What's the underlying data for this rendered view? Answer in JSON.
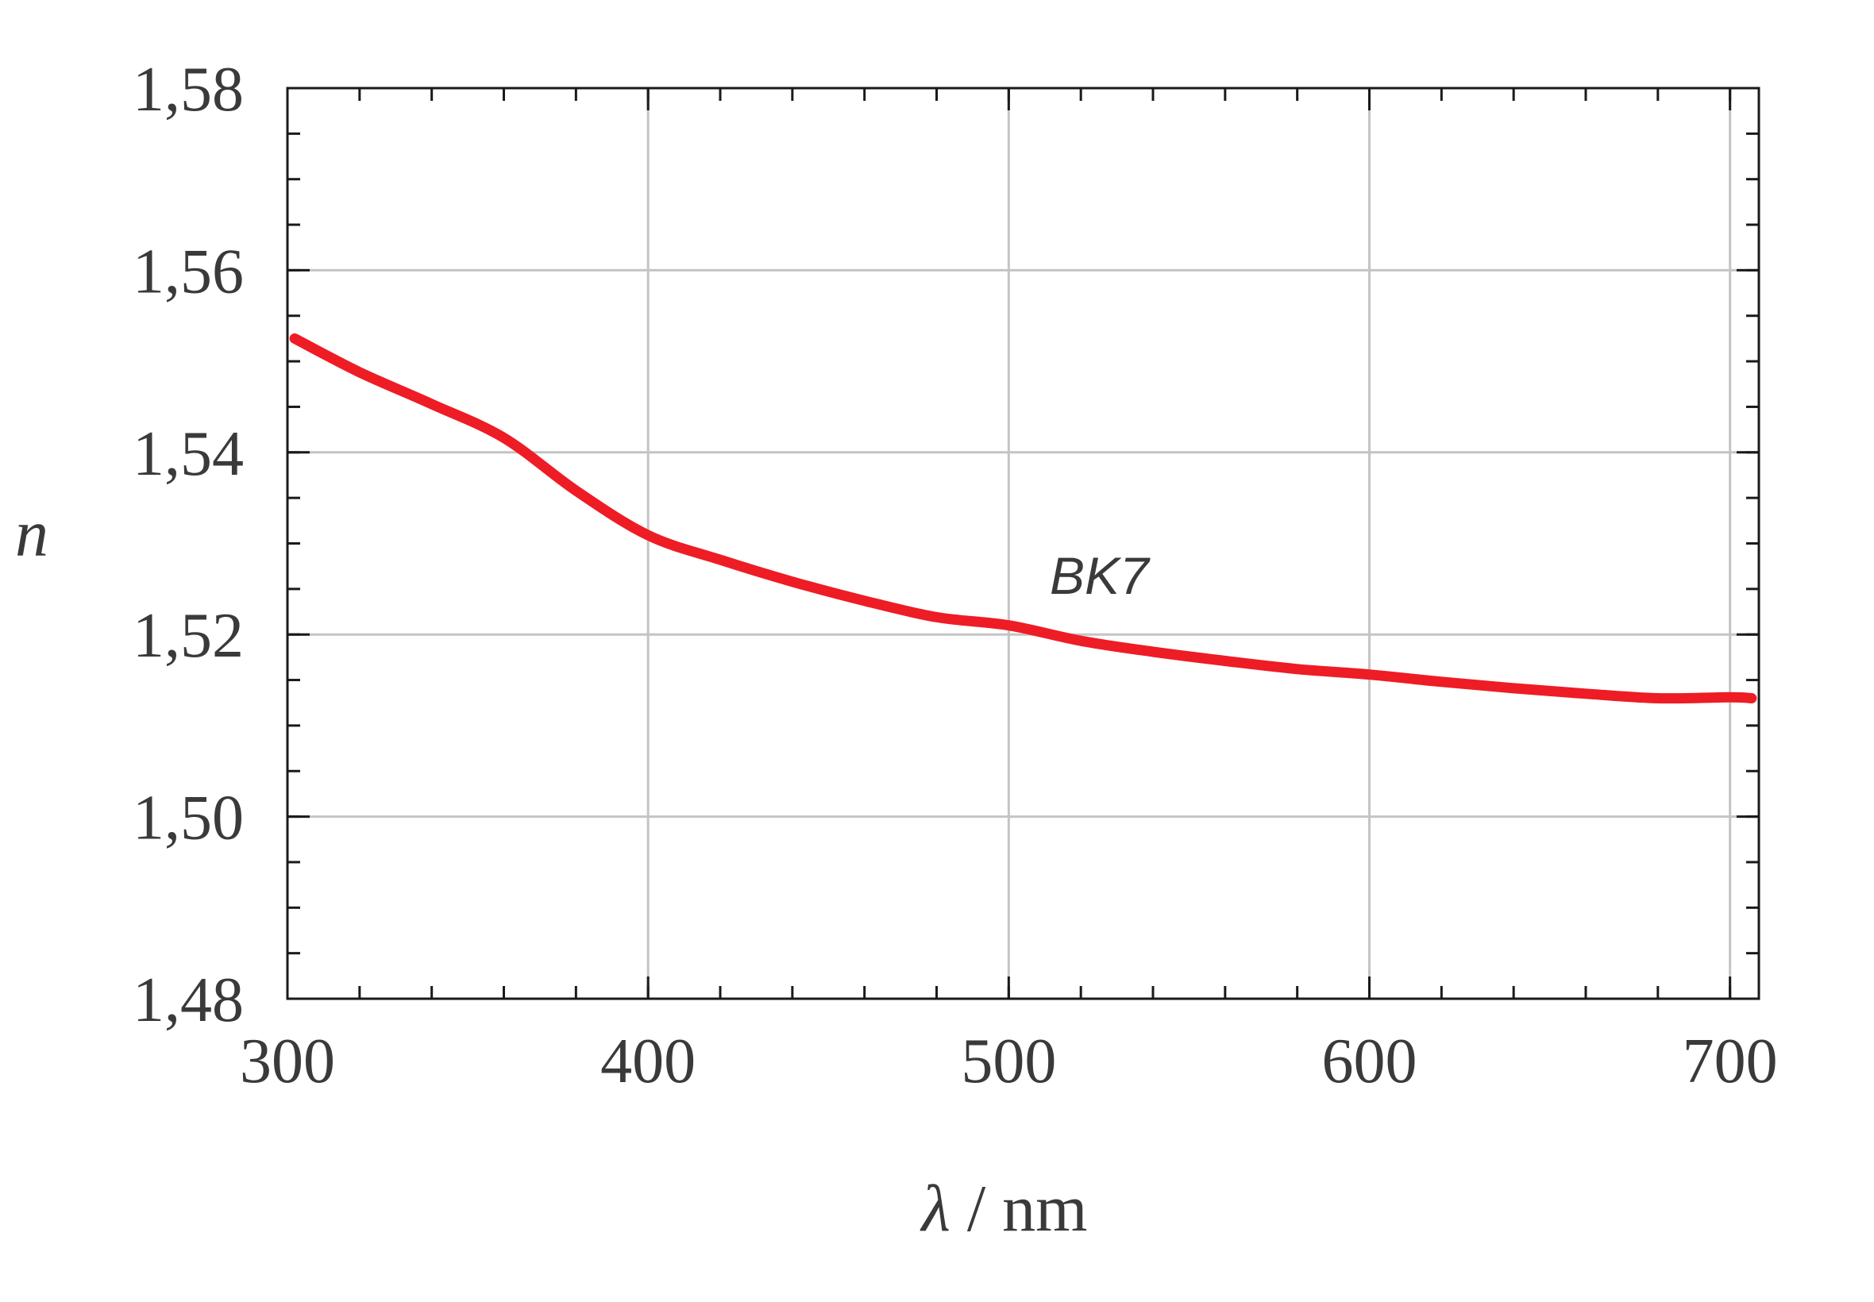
{
  "chart_data": {
    "type": "line",
    "xlabel_symbol": "λ",
    "xlabel_unit": " / nm",
    "ylabel": "n",
    "xlim": [
      300,
      708
    ],
    "ylim": [
      1.48,
      1.58
    ],
    "x_ticks": [
      300,
      400,
      500,
      600,
      700
    ],
    "x_tick_labels": [
      "300",
      "400",
      "500",
      "600",
      "700"
    ],
    "y_ticks": [
      1.48,
      1.5,
      1.52,
      1.54,
      1.56,
      1.58
    ],
    "y_tick_labels": [
      "1,48",
      "1,50",
      "1,52",
      "1,54",
      "1,56",
      "1,58"
    ],
    "x_minor_step": 20,
    "y_minor_step": 0.005,
    "grid": true,
    "series": [
      {
        "name": "BK7",
        "color": "#ee1c25",
        "x": [
          302,
          320,
          340,
          360,
          380,
          400,
          420,
          440,
          460,
          480,
          500,
          520,
          540,
          560,
          580,
          600,
          620,
          640,
          660,
          680,
          700,
          706
        ],
        "y": [
          1.5525,
          1.5488,
          1.5453,
          1.5416,
          1.5358,
          1.5309,
          1.5282,
          1.5258,
          1.5237,
          1.5219,
          1.521,
          1.5193,
          1.5181,
          1.5171,
          1.5162,
          1.5156,
          1.5148,
          1.5141,
          1.5135,
          1.513,
          1.5131,
          1.513
        ]
      }
    ]
  }
}
